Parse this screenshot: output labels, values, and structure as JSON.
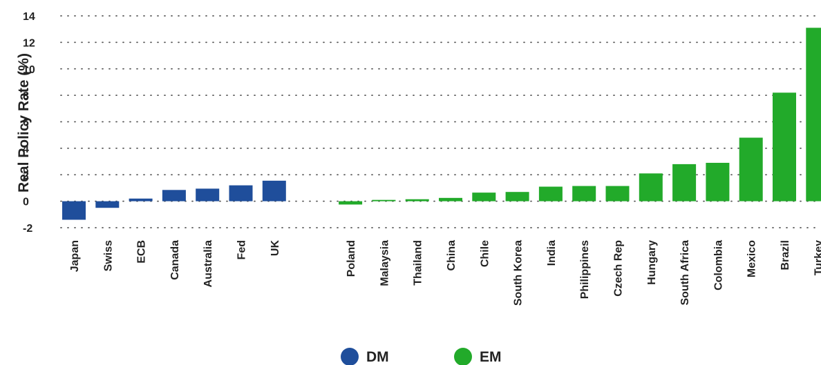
{
  "chart_data": {
    "type": "bar",
    "title": "",
    "xlabel": "",
    "ylabel": "Real Policy Rate (%)",
    "ylim": [
      -2,
      14
    ],
    "yticks": [
      -2,
      0,
      2,
      4,
      6,
      8,
      10,
      12,
      14
    ],
    "grid": "horizontal dotted",
    "legend_position": "bottom-center",
    "series": [
      {
        "name": "DM",
        "color": "#1f4e9b",
        "categories": [
          "Japan",
          "Swiss",
          "ECB",
          "Canada",
          "Australia",
          "Fed",
          "UK"
        ],
        "values": [
          -1.4,
          -0.5,
          0.2,
          0.85,
          0.95,
          1.2,
          1.55
        ]
      },
      {
        "name": "EM",
        "color": "#22aa2a",
        "categories": [
          "Poland",
          "Malaysia",
          "Thailand",
          "China",
          "Chile",
          "South Korea",
          "India",
          "Philippines",
          "Czech Rep",
          "Hungary",
          "South Africa",
          "Colombia",
          "Mexico",
          "Brazil",
          "Turkey"
        ],
        "values": [
          -0.25,
          0.1,
          0.15,
          0.25,
          0.65,
          0.7,
          1.1,
          1.15,
          1.15,
          2.1,
          2.8,
          2.9,
          4.8,
          8.2,
          13.1
        ]
      }
    ],
    "legend": [
      {
        "label": "DM",
        "color": "#1f4e9b"
      },
      {
        "label": "EM",
        "color": "#22aa2a"
      }
    ]
  }
}
